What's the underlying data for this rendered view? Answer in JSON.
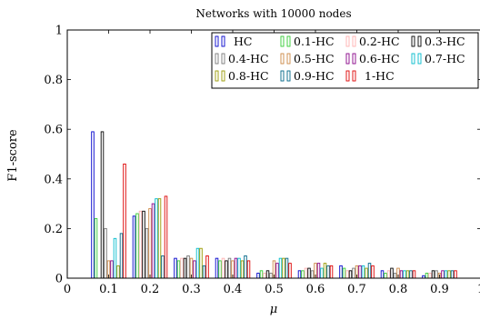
{
  "chart_data": {
    "type": "bar",
    "title": "Networks with 10000 nodes",
    "xlabel": "μ",
    "ylabel": "F1-score",
    "xlim": [
      0,
      1
    ],
    "ylim": [
      0,
      1
    ],
    "grid": false,
    "legend_position": "top-right",
    "x_ticks": [
      "0",
      "0.1",
      "0.2",
      "0.3",
      "0.4",
      "0.5",
      "0.6",
      "0.7",
      "0.8",
      "0.9",
      "1"
    ],
    "y_ticks": [
      "0",
      "0.2",
      "0.4",
      "0.6",
      "0.8",
      "1"
    ],
    "x": [
      0.1,
      0.2,
      0.3,
      0.4,
      0.5,
      0.6,
      0.7,
      0.8,
      0.9
    ],
    "series": [
      {
        "name": "HC",
        "color": "#0000cc",
        "values": [
          0.59,
          0.25,
          0.08,
          0.08,
          0.02,
          0.03,
          0.05,
          0.03,
          0.01
        ]
      },
      {
        "name": "0.1-HC",
        "color": "#33cc33",
        "values": [
          0.24,
          0.26,
          0.07,
          0.07,
          0.03,
          0.03,
          0.04,
          0.02,
          0.02
        ]
      },
      {
        "name": "0.2-HC",
        "color": "#ffb0b0",
        "values": [
          0.0,
          0.27,
          0.08,
          0.08,
          0.02,
          0.04,
          0.03,
          0.03,
          0.02
        ]
      },
      {
        "name": "0.3-HC",
        "color": "#000000",
        "values": [
          0.59,
          0.27,
          0.08,
          0.07,
          0.03,
          0.04,
          0.03,
          0.04,
          0.03
        ]
      },
      {
        "name": "0.4-HC",
        "color": "#777777",
        "values": [
          0.2,
          0.2,
          0.09,
          0.08,
          0.02,
          0.03,
          0.04,
          0.02,
          0.03
        ]
      },
      {
        "name": "0.5-HC",
        "color": "#cc8844",
        "values": [
          0.07,
          0.28,
          0.08,
          0.07,
          0.07,
          0.06,
          0.05,
          0.04,
          0.02
        ]
      },
      {
        "name": "0.6-HC",
        "color": "#880088",
        "values": [
          0.07,
          0.3,
          0.07,
          0.08,
          0.06,
          0.06,
          0.05,
          0.03,
          0.03
        ]
      },
      {
        "name": "0.7-HC",
        "color": "#00bbcc",
        "values": [
          0.16,
          0.32,
          0.12,
          0.08,
          0.08,
          0.04,
          0.05,
          0.03,
          0.03
        ]
      },
      {
        "name": "0.8-HC",
        "color": "#999900",
        "values": [
          0.05,
          0.32,
          0.12,
          0.07,
          0.08,
          0.06,
          0.04,
          0.03,
          0.03
        ]
      },
      {
        "name": "0.9-HC",
        "color": "#006688",
        "values": [
          0.18,
          0.09,
          0.05,
          0.09,
          0.08,
          0.05,
          0.06,
          0.03,
          0.03
        ]
      },
      {
        "name": "1-HC",
        "color": "#dd0000",
        "values": [
          0.46,
          0.33,
          0.09,
          0.07,
          0.06,
          0.05,
          0.05,
          0.03,
          0.03
        ]
      }
    ]
  }
}
